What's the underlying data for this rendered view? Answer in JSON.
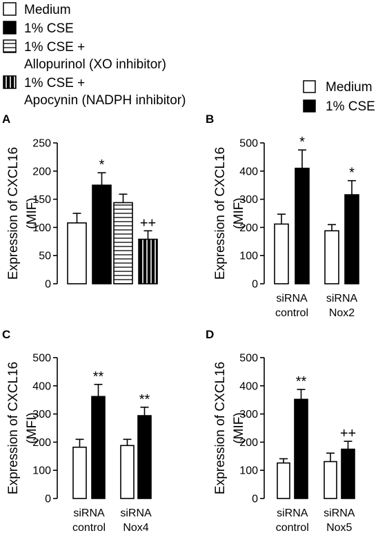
{
  "colors": {
    "medium": "#ffffff",
    "cse": "#000000",
    "stroke": "#000000"
  },
  "legend_main": [
    {
      "lines": [
        "Medium"
      ],
      "pattern": "white"
    },
    {
      "lines": [
        "1% CSE"
      ],
      "pattern": "black"
    },
    {
      "lines": [
        "1% CSE  +",
        "Allopurinol (XO inhibitor)"
      ],
      "pattern": "hlines"
    },
    {
      "lines": [
        "1% CSE +",
        "Apocynin (NADPH inhibitor)"
      ],
      "pattern": "vlines"
    }
  ],
  "legend_side": [
    {
      "lines": [
        "Medium"
      ],
      "pattern": "white"
    },
    {
      "lines": [
        "1% CSE"
      ],
      "pattern": "black"
    }
  ],
  "chart_data": [
    {
      "panel": "A",
      "type": "bar",
      "ylabel": [
        "Expression of CXCL16",
        "(MIF)"
      ],
      "ylim": [
        0,
        250
      ],
      "yticks": [
        0,
        50,
        100,
        150,
        200,
        250
      ],
      "grid": false,
      "legend": "top-left",
      "groups": [
        {
          "label": [],
          "bars": [
            {
              "series": "Medium",
              "pattern": "white",
              "value": 108,
              "error": 17,
              "sig": ""
            },
            {
              "series": "1% CSE",
              "pattern": "black",
              "value": 175,
              "error": 22,
              "sig": "*"
            },
            {
              "series": "1% CSE + Allopurinol (XO inhibitor)",
              "pattern": "hlines",
              "value": 144,
              "error": 15,
              "sig": ""
            },
            {
              "series": "1% CSE + Apocynin (NADPH inhibitor)",
              "pattern": "vlines",
              "value": 79,
              "error": 15,
              "sig": "++"
            }
          ]
        }
      ]
    },
    {
      "panel": "B",
      "type": "bar",
      "ylabel": [
        "Expression of CXCL16",
        "(MIF)"
      ],
      "ylim": [
        0,
        500
      ],
      "yticks": [
        0,
        100,
        200,
        300,
        400,
        500
      ],
      "grid": false,
      "legend": "top-right",
      "groups": [
        {
          "label": [
            "siRNA",
            "control"
          ],
          "bars": [
            {
              "series": "Medium",
              "pattern": "white",
              "value": 212,
              "error": 35,
              "sig": ""
            },
            {
              "series": "1% CSE",
              "pattern": "black",
              "value": 410,
              "error": 65,
              "sig": "*"
            }
          ]
        },
        {
          "label": [
            "siRNA",
            "Nox2"
          ],
          "bars": [
            {
              "series": "Medium",
              "pattern": "white",
              "value": 188,
              "error": 22,
              "sig": ""
            },
            {
              "series": "1% CSE",
              "pattern": "black",
              "value": 316,
              "error": 50,
              "sig": "*"
            }
          ]
        }
      ]
    },
    {
      "panel": "C",
      "type": "bar",
      "ylabel": [
        "Expression of CXCL16",
        "(MFI)"
      ],
      "ylim": [
        0,
        500
      ],
      "yticks": [
        0,
        100,
        200,
        300,
        400,
        500
      ],
      "grid": false,
      "legend": "none",
      "groups": [
        {
          "label": [
            "siRNA",
            "control"
          ],
          "bars": [
            {
              "series": "Medium",
              "pattern": "white",
              "value": 182,
              "error": 28,
              "sig": ""
            },
            {
              "series": "1% CSE",
              "pattern": "black",
              "value": 362,
              "error": 43,
              "sig": "**"
            }
          ]
        },
        {
          "label": [
            "siRNA",
            "Nox4"
          ],
          "bars": [
            {
              "series": "Medium",
              "pattern": "white",
              "value": 188,
              "error": 22,
              "sig": ""
            },
            {
              "series": "1% CSE",
              "pattern": "black",
              "value": 294,
              "error": 30,
              "sig": "**"
            }
          ]
        }
      ]
    },
    {
      "panel": "D",
      "type": "bar",
      "ylabel": [
        "Expression of CXCL16",
        "(MIF)"
      ],
      "ylim": [
        0,
        500
      ],
      "yticks": [
        0,
        100,
        200,
        300,
        400,
        500
      ],
      "grid": false,
      "legend": "none",
      "groups": [
        {
          "label": [
            "siRNA",
            "control"
          ],
          "bars": [
            {
              "series": "Medium",
              "pattern": "white",
              "value": 126,
              "error": 15,
              "sig": ""
            },
            {
              "series": "1% CSE",
              "pattern": "black",
              "value": 352,
              "error": 35,
              "sig": "**"
            }
          ]
        },
        {
          "label": [
            "siRNA",
            "Nox5"
          ],
          "bars": [
            {
              "series": "Medium",
              "pattern": "white",
              "value": 131,
              "error": 30,
              "sig": ""
            },
            {
              "series": "1% CSE",
              "pattern": "black",
              "value": 175,
              "error": 28,
              "sig": "++"
            }
          ]
        }
      ]
    }
  ]
}
